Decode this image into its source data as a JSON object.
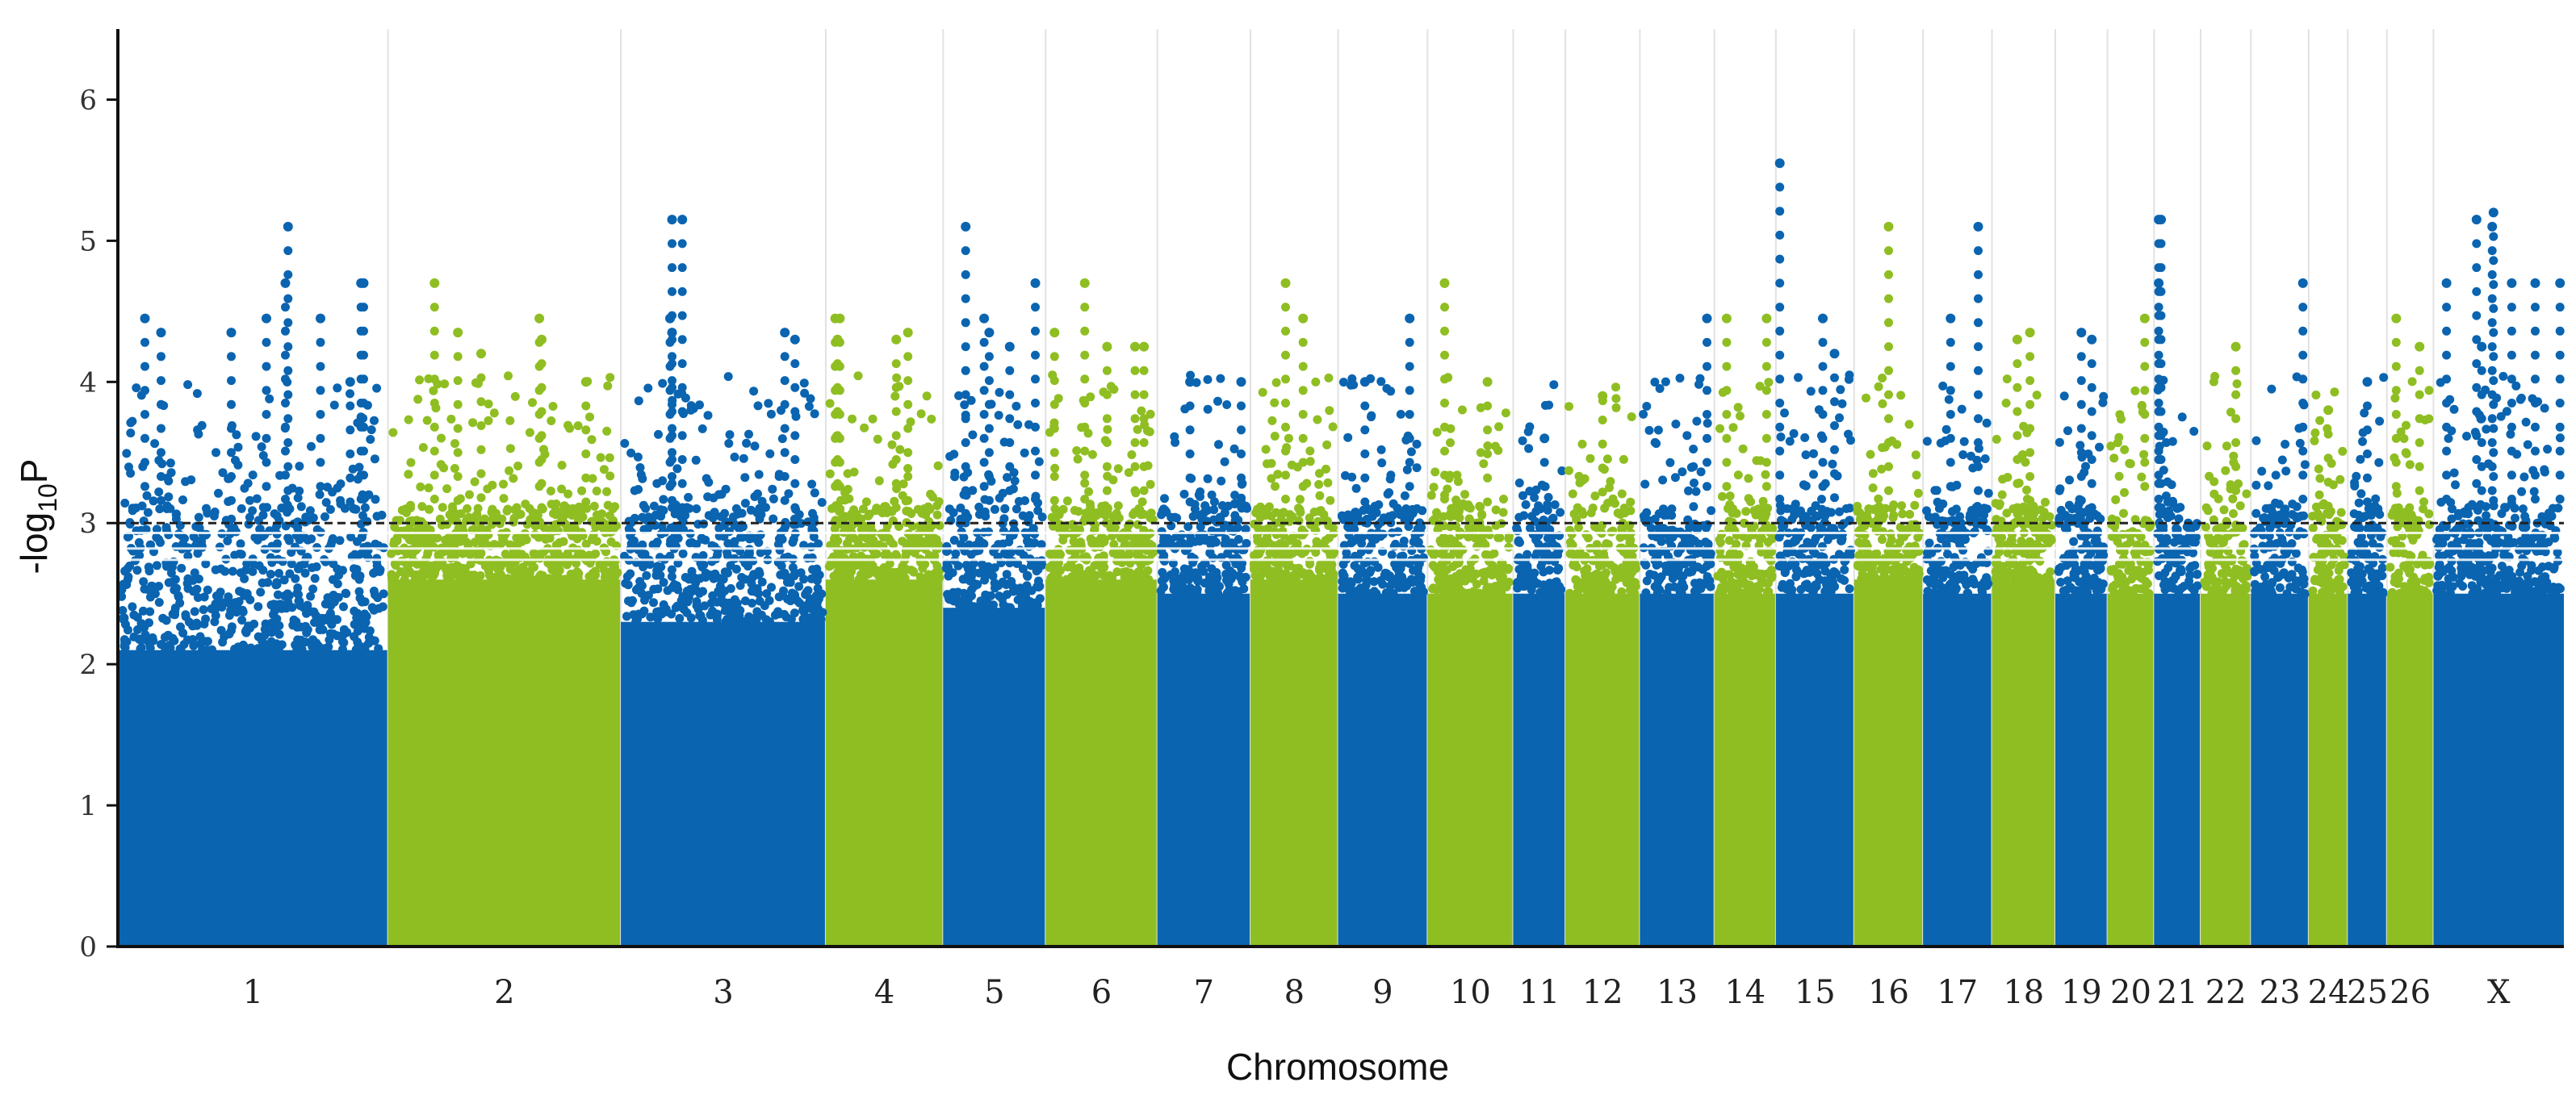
{
  "chart_data": {
    "type": "scatter",
    "subtype": "manhattan",
    "title": "",
    "xlabel": "Chromosome",
    "ylabel_main": "-log",
    "ylabel_sub": "10",
    "ylabel_tail": "P",
    "ylim": [
      0,
      6.5
    ],
    "yticks": [
      0,
      1,
      2,
      3,
      4,
      5,
      6
    ],
    "threshold_line": 3.0,
    "grid": "vertical chromosome separators",
    "colors": {
      "odd": "#0a64b0",
      "even": "#8fbe22",
      "threshold": "#222222",
      "grid": "#e2e2e2"
    },
    "chromosomes": [
      {
        "label": "1",
        "size": 14.5,
        "fill_top": 2.1,
        "peaks": [
          [
            0.1,
            4.45
          ],
          [
            0.16,
            4.35
          ],
          [
            0.42,
            4.35
          ],
          [
            0.55,
            4.45
          ],
          [
            0.62,
            4.7
          ],
          [
            0.63,
            5.1
          ],
          [
            0.75,
            4.45
          ],
          [
            0.9,
            4.7
          ],
          [
            0.91,
            4.7
          ],
          [
            0.86,
            4.0
          ]
        ]
      },
      {
        "label": "2",
        "size": 12.5,
        "fill_top": 2.6,
        "peaks": [
          [
            0.2,
            4.7
          ],
          [
            0.3,
            4.35
          ],
          [
            0.4,
            4.2
          ],
          [
            0.65,
            4.45
          ],
          [
            0.66,
            4.3
          ],
          [
            0.85,
            4.0
          ]
        ]
      },
      {
        "label": "3",
        "size": 11.0,
        "fill_top": 2.3,
        "peaks": [
          [
            0.25,
            5.15
          ],
          [
            0.3,
            5.15
          ],
          [
            0.24,
            4.45
          ],
          [
            0.25,
            4.35
          ],
          [
            0.8,
            4.35
          ],
          [
            0.85,
            4.3
          ]
        ]
      },
      {
        "label": "4",
        "size": 6.3,
        "fill_top": 2.6,
        "peaks": [
          [
            0.08,
            4.45
          ],
          [
            0.12,
            4.45
          ],
          [
            0.1,
            4.3
          ],
          [
            0.6,
            4.3
          ],
          [
            0.7,
            4.35
          ]
        ]
      },
      {
        "label": "5",
        "size": 5.5,
        "fill_top": 2.4,
        "peaks": [
          [
            0.22,
            5.1
          ],
          [
            0.4,
            4.45
          ],
          [
            0.45,
            4.35
          ],
          [
            0.65,
            4.25
          ],
          [
            0.9,
            4.7
          ]
        ]
      },
      {
        "label": "6",
        "size": 6.0,
        "fill_top": 2.6,
        "peaks": [
          [
            0.08,
            4.35
          ],
          [
            0.35,
            4.7
          ],
          [
            0.55,
            4.25
          ],
          [
            0.8,
            4.25
          ],
          [
            0.88,
            4.25
          ]
        ]
      },
      {
        "label": "7",
        "size": 5.0,
        "fill_top": 2.5,
        "peaks": [
          [
            0.35,
            4.0
          ],
          [
            0.9,
            4.0
          ]
        ]
      },
      {
        "label": "8",
        "size": 4.7,
        "fill_top": 2.6,
        "peaks": [
          [
            0.4,
            4.7
          ],
          [
            0.6,
            4.45
          ]
        ]
      },
      {
        "label": "9",
        "size": 4.8,
        "fill_top": 2.5,
        "peaks": [
          [
            0.3,
            4.0
          ],
          [
            0.8,
            4.45
          ]
        ]
      },
      {
        "label": "10",
        "size": 4.6,
        "fill_top": 2.5,
        "peaks": [
          [
            0.2,
            4.7
          ],
          [
            0.7,
            4.0
          ]
        ]
      },
      {
        "label": "11",
        "size": 2.8,
        "fill_top": 2.5,
        "peaks": [
          [
            0.6,
            3.6
          ]
        ]
      },
      {
        "label": "12",
        "size": 4.0,
        "fill_top": 2.5,
        "peaks": [
          [
            0.5,
            3.9
          ]
        ]
      },
      {
        "label": "13",
        "size": 4.0,
        "fill_top": 2.5,
        "peaks": [
          [
            0.9,
            4.45
          ]
        ]
      },
      {
        "label": "14",
        "size": 3.3,
        "fill_top": 2.5,
        "peaks": [
          [
            0.2,
            4.45
          ],
          [
            0.85,
            4.45
          ]
        ]
      },
      {
        "label": "15",
        "size": 4.2,
        "fill_top": 2.5,
        "peaks": [
          [
            0.05,
            5.55
          ],
          [
            0.6,
            4.45
          ],
          [
            0.75,
            4.2
          ]
        ]
      },
      {
        "label": "16",
        "size": 3.7,
        "fill_top": 2.6,
        "peaks": [
          [
            0.5,
            5.1
          ]
        ]
      },
      {
        "label": "17",
        "size": 3.7,
        "fill_top": 2.5,
        "peaks": [
          [
            0.4,
            4.45
          ],
          [
            0.8,
            5.1
          ]
        ]
      },
      {
        "label": "18",
        "size": 3.4,
        "fill_top": 2.6,
        "peaks": [
          [
            0.4,
            4.3
          ],
          [
            0.6,
            4.35
          ]
        ]
      },
      {
        "label": "19",
        "size": 2.8,
        "fill_top": 2.5,
        "peaks": [
          [
            0.5,
            4.35
          ],
          [
            0.7,
            4.3
          ]
        ]
      },
      {
        "label": "20",
        "size": 2.5,
        "fill_top": 2.5,
        "peaks": [
          [
            0.8,
            4.45
          ]
        ]
      },
      {
        "label": "21",
        "size": 2.5,
        "fill_top": 2.5,
        "peaks": [
          [
            0.1,
            5.15
          ],
          [
            0.15,
            5.15
          ],
          [
            0.1,
            4.7
          ]
        ]
      },
      {
        "label": "22",
        "size": 2.7,
        "fill_top": 2.5,
        "peaks": [
          [
            0.7,
            4.25
          ]
        ]
      },
      {
        "label": "23",
        "size": 3.1,
        "fill_top": 2.5,
        "peaks": [
          [
            0.9,
            4.7
          ]
        ]
      },
      {
        "label": "24",
        "size": 2.1,
        "fill_top": 2.5,
        "peaks": [
          [
            0.5,
            3.8
          ]
        ]
      },
      {
        "label": "25",
        "size": 2.1,
        "fill_top": 2.5,
        "peaks": [
          [
            0.5,
            4.0
          ]
        ]
      },
      {
        "label": "26",
        "size": 2.5,
        "fill_top": 2.5,
        "peaks": [
          [
            0.2,
            4.45
          ],
          [
            0.7,
            4.25
          ]
        ]
      },
      {
        "label": "X",
        "size": 7.0,
        "fill_top": 2.5,
        "peaks": [
          [
            0.1,
            4.7
          ],
          [
            0.33,
            5.15
          ],
          [
            0.37,
            4.25
          ],
          [
            0.45,
            5.1
          ],
          [
            0.46,
            5.2
          ],
          [
            0.6,
            4.7
          ],
          [
            0.78,
            4.7
          ],
          [
            0.97,
            4.7
          ]
        ]
      }
    ]
  }
}
